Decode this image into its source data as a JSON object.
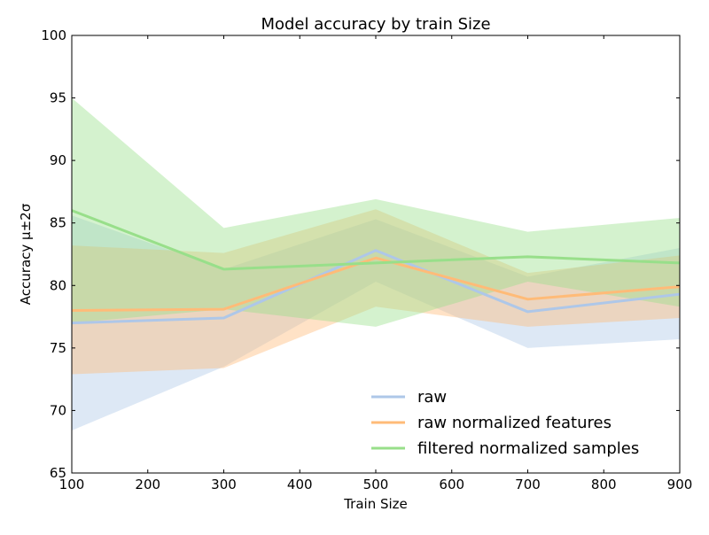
{
  "chart_data": {
    "type": "line",
    "title": "Model accuracy by train Size",
    "xlabel": "Train Size",
    "ylabel": "Accuracy μ±2σ",
    "xlim": [
      100,
      900
    ],
    "ylim": [
      65,
      100
    ],
    "xticks": [
      100,
      200,
      300,
      400,
      500,
      600,
      700,
      800,
      900
    ],
    "yticks": [
      65,
      70,
      75,
      80,
      85,
      90,
      95,
      100
    ],
    "grid": false,
    "legend_position": "lower-right",
    "x": [
      100,
      300,
      500,
      700,
      900
    ],
    "series": [
      {
        "name": "raw",
        "color": "#aec7e8",
        "values": [
          77.0,
          77.4,
          82.8,
          77.9,
          79.3
        ],
        "lower": [
          68.4,
          73.5,
          80.3,
          75.0,
          75.7
        ],
        "upper": [
          85.6,
          81.3,
          85.3,
          80.7,
          83.0
        ]
      },
      {
        "name": "raw normalized features",
        "color": "#ffbb78",
        "values": [
          78.0,
          78.1,
          82.2,
          78.9,
          79.9
        ],
        "lower": [
          72.9,
          73.4,
          78.3,
          76.7,
          77.4
        ],
        "upper": [
          83.2,
          82.6,
          86.1,
          81.0,
          82.4
        ]
      },
      {
        "name": "filtered normalized samples",
        "color": "#98df8a",
        "values": [
          86.0,
          81.3,
          81.8,
          82.3,
          81.8
        ],
        "lower": [
          77.0,
          78.1,
          76.7,
          80.3,
          78.3
        ],
        "upper": [
          95.0,
          84.6,
          86.9,
          84.3,
          85.4
        ]
      }
    ]
  }
}
